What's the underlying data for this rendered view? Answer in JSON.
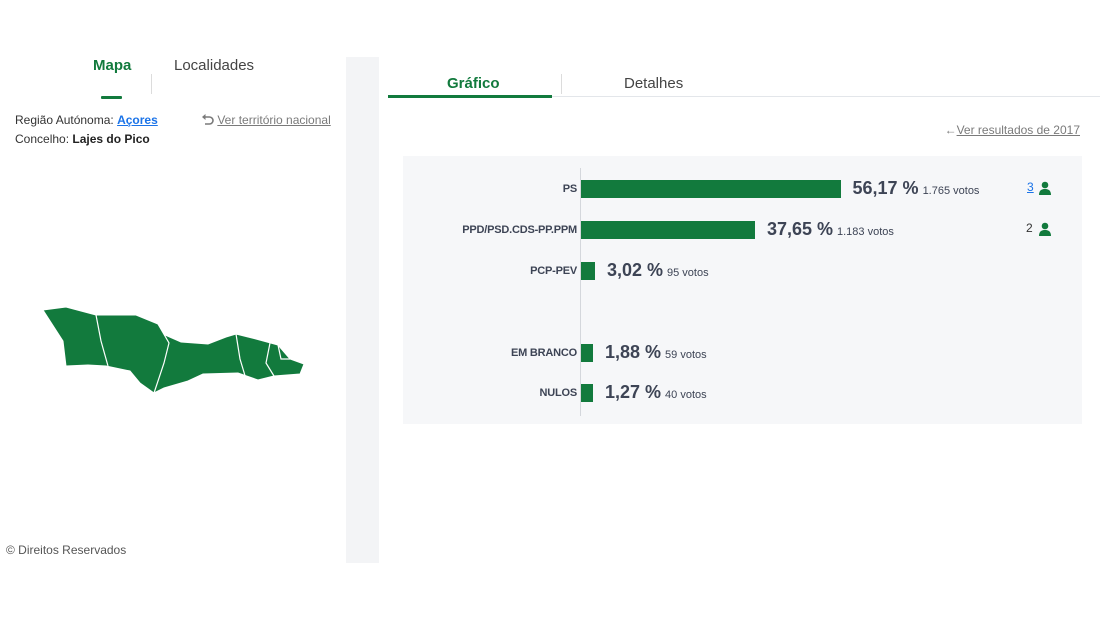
{
  "left_panel": {
    "tabs": [
      {
        "label": "Mapa"
      },
      {
        "label": "Localidades"
      }
    ],
    "region_label": "Região Autónoma:",
    "region_value": "Açores",
    "concelho_label": "Concelho:",
    "concelho_value": "Lajes do Pico",
    "national_link": "Ver território nacional",
    "map_name": "Lajes do Pico",
    "copyright": "© Direitos Reservados"
  },
  "right_panel": {
    "tabs": [
      {
        "label": "Gráfico"
      },
      {
        "label": "Detalhes"
      }
    ],
    "previous_results_link": "Ver resultados de 2017"
  },
  "colors": {
    "accent": "#127a3d",
    "link": "#1a73e8",
    "chart_bg": "#f6f7f9"
  },
  "chart_data": {
    "type": "bar",
    "orientation": "horizontal",
    "categories": [
      "PS",
      "PPD/PSD.CDS-PP.PPM",
      "PCP-PEV",
      "EM BRANCO",
      "NULOS"
    ],
    "values": [
      56.17,
      37.65,
      3.02,
      1.88,
      1.27
    ],
    "value_labels": [
      "56,17 %",
      "37,65 %",
      "3,02 %",
      "1,88 %",
      "1,27 %"
    ],
    "votes": [
      "1.765 votos",
      "1.183 votos",
      "95 votos",
      "59 votos",
      "40 votos"
    ],
    "seats": [
      "3",
      "2",
      "",
      "",
      ""
    ],
    "grid": false
  }
}
